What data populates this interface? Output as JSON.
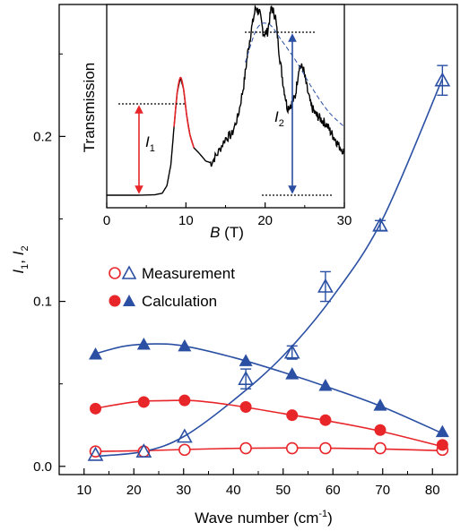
{
  "chart_data": [
    {
      "type": "scatter",
      "xlabel_main": "Wave number (cm",
      "xlabel_sup": "-1",
      "xlabel_close": ")",
      "ylabel_I1": "I",
      "ylabel_sub1": "1",
      "ylabel_sep": ", ",
      "ylabel_I2": "I",
      "ylabel_sub2": "2",
      "xlim": [
        5,
        85
      ],
      "ylim": [
        -0.005,
        0.28
      ],
      "x_ticks": [
        10,
        20,
        30,
        40,
        50,
        60,
        70,
        80
      ],
      "x_tick_labels": [
        "10",
        "20",
        "30",
        "40",
        "50",
        "60",
        "70",
        "80"
      ],
      "y_ticks": [
        0.0,
        0.1,
        0.2
      ],
      "y_tick_labels": [
        "0.0",
        "0.1",
        "0.2"
      ],
      "legend": {
        "measurement": "Measurement",
        "calculation": "Calculation"
      },
      "colors": {
        "red": "#e8262a",
        "blue": "#2a4fa3"
      },
      "series": [
        {
          "marker": "open-circle",
          "color": "red",
          "x": [
            12.3,
            22,
            30.2,
            42.5,
            51.8,
            58.5,
            69.5,
            82
          ],
          "y": [
            0.009,
            0.009,
            0.01,
            0.011,
            0.011,
            0.011,
            0.011,
            0.01
          ]
        },
        {
          "marker": "open-triangle",
          "color": "blue",
          "x": [
            12.3,
            22,
            30.2,
            42.5,
            51.8,
            58.5,
            69.5,
            82
          ],
          "y": [
            0.007,
            0.009,
            0.018,
            0.053,
            0.069,
            0.109,
            0.146,
            0.234
          ],
          "err": [
            0,
            0,
            0,
            0.006,
            0.004,
            0.009,
            0.003,
            0.009
          ]
        },
        {
          "marker": "filled-circle",
          "color": "red",
          "x": [
            12.3,
            22,
            30.2,
            42.5,
            51.8,
            58.5,
            69.5,
            82
          ],
          "y": [
            0.035,
            0.039,
            0.04,
            0.036,
            0.031,
            0.028,
            0.022,
            0.013
          ]
        },
        {
          "marker": "filled-triangle",
          "color": "blue",
          "x": [
            12.3,
            22,
            30.2,
            42.5,
            51.8,
            58.5,
            69.5,
            82
          ],
          "y": [
            0.068,
            0.074,
            0.073,
            0.064,
            0.056,
            0.049,
            0.037,
            0.021
          ]
        }
      ],
      "fit_curves": [
        {
          "color": "red",
          "x": [
            12,
            22,
            30,
            42,
            52,
            60,
            70,
            82
          ],
          "y": [
            0.009,
            0.0095,
            0.0102,
            0.011,
            0.0112,
            0.011,
            0.0105,
            0.0095
          ]
        },
        {
          "color": "blue",
          "x": [
            12,
            22,
            30,
            40,
            50,
            60,
            70,
            82
          ],
          "y": [
            0.006,
            0.009,
            0.018,
            0.04,
            0.067,
            0.103,
            0.15,
            0.235
          ]
        },
        {
          "color": "red",
          "x": [
            12,
            20,
            26,
            32,
            40,
            50,
            60,
            70,
            82
          ],
          "y": [
            0.035,
            0.039,
            0.0398,
            0.0398,
            0.037,
            0.032,
            0.027,
            0.021,
            0.012
          ]
        },
        {
          "color": "blue",
          "x": [
            12,
            18,
            24,
            30,
            40,
            50,
            60,
            70,
            82
          ],
          "y": [
            0.068,
            0.0728,
            0.0742,
            0.073,
            0.066,
            0.057,
            0.047,
            0.036,
            0.02
          ]
        }
      ]
    },
    {
      "type": "line",
      "xlabel_B": "B",
      "xlabel_unit": " (T)",
      "ylabel": "Transmission",
      "xlim": [
        0,
        30
      ],
      "x_ticks": [
        0,
        10,
        20,
        30
      ],
      "x_tick_labels": [
        "0",
        "10",
        "20",
        "30"
      ],
      "annotations": {
        "I1": "I",
        "I1_sub": "1",
        "I2": "I",
        "I2_sub": "2"
      },
      "trace": {
        "x": [
          0,
          2,
          4,
          6,
          7,
          7.6,
          8.1,
          8.5,
          8.9,
          9.3,
          9.7,
          10.1,
          10.5,
          11,
          11.7,
          12.5,
          13.2,
          14,
          15,
          15.8,
          16.6,
          17.3,
          17.8,
          18.3,
          18.8,
          19.3,
          19.8,
          20.3,
          20.8,
          21.3,
          21.8,
          22.3,
          22.8,
          23.3,
          23.8,
          24.3,
          24.8,
          25.3,
          25.8,
          26.3,
          26.8,
          27.3,
          27.8,
          28.3,
          28.8,
          29.3,
          30
        ],
        "y": [
          0.0,
          0.0,
          0.0,
          0.002,
          0.01,
          0.05,
          0.16,
          0.36,
          0.54,
          0.62,
          0.56,
          0.42,
          0.32,
          0.25,
          0.22,
          0.18,
          0.17,
          0.22,
          0.3,
          0.32,
          0.42,
          0.58,
          0.75,
          0.88,
          0.99,
          0.96,
          0.85,
          0.86,
          0.99,
          0.94,
          0.74,
          0.58,
          0.46,
          0.48,
          0.52,
          0.68,
          0.67,
          0.56,
          0.47,
          0.43,
          0.41,
          0.39,
          0.37,
          0.33,
          0.3,
          0.26,
          0.23
        ]
      }
    }
  ]
}
